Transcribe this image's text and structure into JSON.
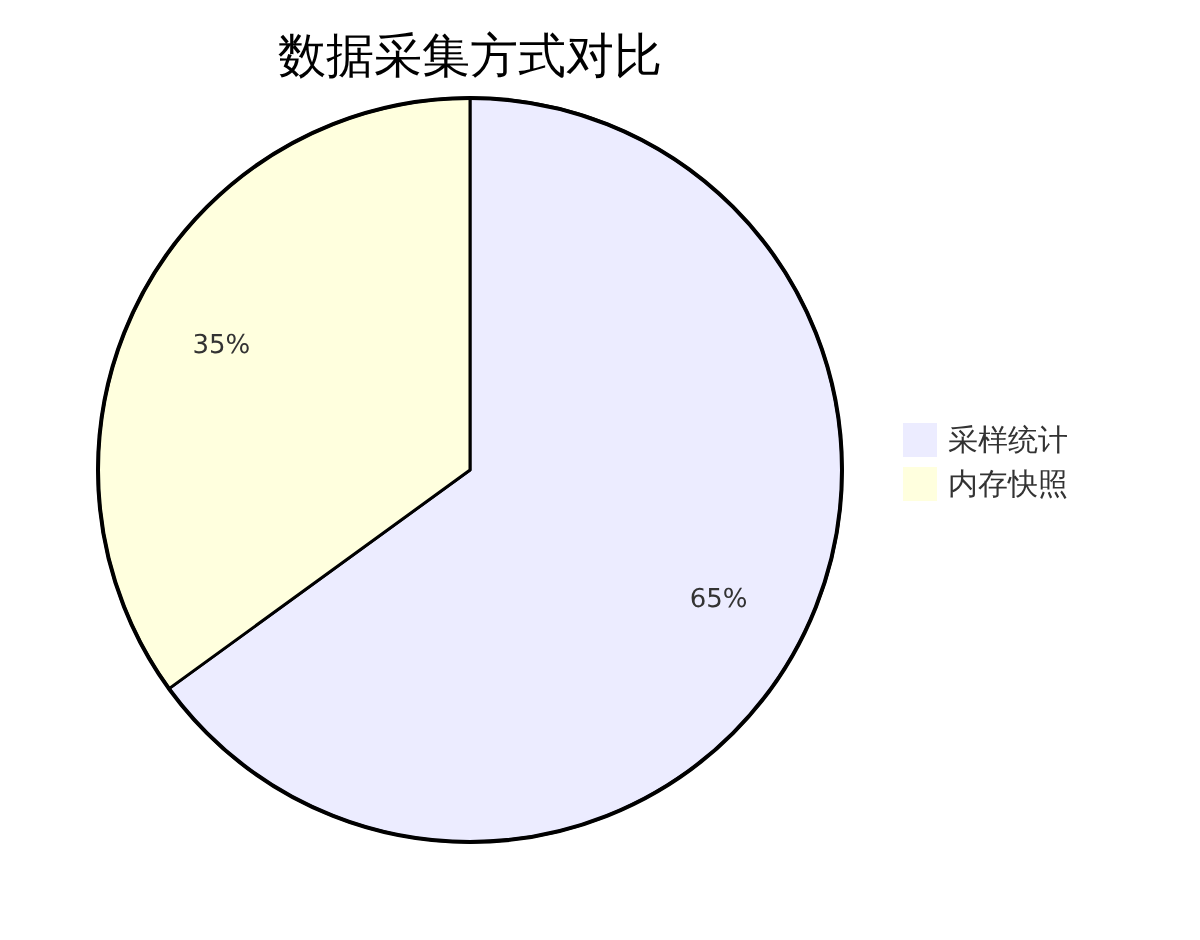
{
  "chart_data": {
    "type": "pie",
    "title": "数据采集方式对比",
    "categories": [
      "采样统计",
      "内存快照"
    ],
    "values": [
      65,
      35
    ],
    "colors": [
      "#ececff",
      "#ffffde"
    ],
    "value_labels": [
      "65%",
      "35%"
    ],
    "legend": "right"
  }
}
